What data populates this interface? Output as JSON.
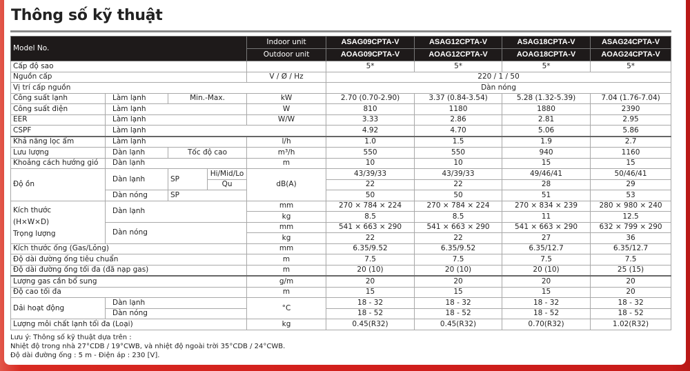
{
  "title": "Thông số kỹ thuật",
  "header": {
    "model_label": "Model No.",
    "indoor_label": "Indoor unit",
    "outdoor_label": "Outdoor unit",
    "indoor_models": [
      "ASAG09CPTA-V",
      "ASAG12CPTA-V",
      "ASAG18CPTA-V",
      "ASAG24CPTA-V"
    ],
    "outdoor_models": [
      "AOAG09CPTA-V",
      "AOAG12CPTA-V",
      "AOAG18CPTA-V",
      "AOAG24CPTA-V"
    ]
  },
  "rows": [
    {
      "label": "Cấp độ sao",
      "values": [
        "5*",
        "5*",
        "5*",
        "5*"
      ]
    },
    {
      "label": "Nguồn cấp",
      "unit": "V / Ø / Hz",
      "value": "220 / 1 / 50"
    },
    {
      "label": "Vị trí cấp nguồn",
      "value": "Dàn nóng"
    },
    {
      "label": "Công suất lạnh",
      "sub": "Làm lạnh",
      "sub2": "Min.-Max.",
      "unit": "kW",
      "values": [
        "2.70 (0.70-2.90)",
        "3.37 (0.84-3.54)",
        "5.28 (1.32-5.39)",
        "7.04 (1.76-7.04)"
      ]
    },
    {
      "label": "Công suất điện",
      "sub": "Làm lạnh",
      "unit": "W",
      "values": [
        "810",
        "1180",
        "1880",
        "2390"
      ]
    },
    {
      "label": "EER",
      "sub": "Làm lạnh",
      "unit": "W/W",
      "values": [
        "3.33",
        "2.86",
        "2.81",
        "2.95"
      ]
    },
    {
      "label": "CSPF",
      "sub": "Làm lạnh",
      "values": [
        "4.92",
        "4.70",
        "5.06",
        "5.86"
      ]
    },
    {
      "label": "Khả năng lọc ẩm",
      "sub": "Làm lạnh",
      "unit": "l/h",
      "values": [
        "1.0",
        "1.5",
        "1.9",
        "2.7"
      ]
    },
    {
      "label": "Lưu lượng",
      "sub": "Dàn lạnh",
      "sub2": "Tốc độ cao",
      "unit": "m³/h",
      "values": [
        "550",
        "550",
        "940",
        "1160"
      ]
    },
    {
      "label": "Khoảng cách hướng gió",
      "sub": "Dàn lạnh",
      "unit": "m",
      "values": [
        "10",
        "10",
        "15",
        "15"
      ]
    },
    {
      "label": "Độ ồn",
      "sub": "Dàn lạnh",
      "sub2": "SP",
      "sub3": "Hi/Mid/Lo",
      "unit": "dB(A)",
      "values": [
        "43/39/33",
        "43/39/33",
        "49/46/41",
        "50/46/41"
      ]
    },
    {
      "sub3": "Qu",
      "values": [
        "22",
        "22",
        "28",
        "29"
      ]
    },
    {
      "sub": "Dàn nóng",
      "sub2": "SP",
      "values": [
        "50",
        "50",
        "51",
        "53"
      ]
    },
    {
      "label": "Kích thước",
      "label2": "(H×W×D)",
      "label3": "Trọng lượng",
      "sub": "Dàn lạnh",
      "unit": "mm",
      "values": [
        "270 × 784 × 224",
        "270 × 784 × 224",
        "270 × 834 × 239",
        "280 × 980 × 240"
      ]
    },
    {
      "unit": "kg",
      "values": [
        "8.5",
        "8.5",
        "11",
        "12.5"
      ]
    },
    {
      "sub": "Dàn nóng",
      "unit": "mm",
      "values": [
        "541 × 663 × 290",
        "541 × 663 × 290",
        "541 × 663 × 290",
        "632 × 799 × 290"
      ]
    },
    {
      "unit": "kg",
      "values": [
        "22",
        "22",
        "27",
        "36"
      ]
    },
    {
      "label": "Kích thước ống (Gas/Lỏng)",
      "unit": "mm",
      "values": [
        "6.35/9.52",
        "6.35/9.52",
        "6.35/12.7",
        "6.35/12.7"
      ]
    },
    {
      "label": "Độ dài đường ống tiêu chuẩn",
      "unit": "m",
      "values": [
        "7.5",
        "7.5",
        "7.5",
        "7.5"
      ]
    },
    {
      "label": "Độ dài đường ống tối đa (đã nạp gas)",
      "unit": "m",
      "values": [
        "20 (10)",
        "20 (10)",
        "20 (10)",
        "25 (15)"
      ]
    },
    {
      "label": "Lượng gas cần bổ sung",
      "unit": "g/m",
      "values": [
        "20",
        "20",
        "20",
        "20"
      ]
    },
    {
      "label": "Độ cao tối đa",
      "unit": "m",
      "values": [
        "15",
        "15",
        "15",
        "20"
      ]
    },
    {
      "label": "Dải hoạt động",
      "sub": "Dàn lạnh",
      "unit": "°C",
      "values": [
        "18 - 32",
        "18 - 32",
        "18 - 32",
        "18 - 32"
      ]
    },
    {
      "sub": "Dàn nóng",
      "values": [
        "18 - 52",
        "18 - 52",
        "18 - 52",
        "18 - 52"
      ]
    },
    {
      "label": "Lượng môi chất lạnh tối đa (Loại)",
      "unit": "kg",
      "values": [
        "0.45(R32)",
        "0.45(R32)",
        "0.70(R32)",
        "1.02(R32)"
      ]
    }
  ],
  "notes": [
    "Lưu ý: Thông số kỹ thuật dựa trên :",
    "Nhiệt độ trong nhà 27°CDB / 19°CWB, và nhiệt độ ngoài trời 35°CDB / 24°CWB.",
    "Độ dài đường ống : 5 m - Điện áp : 230 [V]."
  ]
}
